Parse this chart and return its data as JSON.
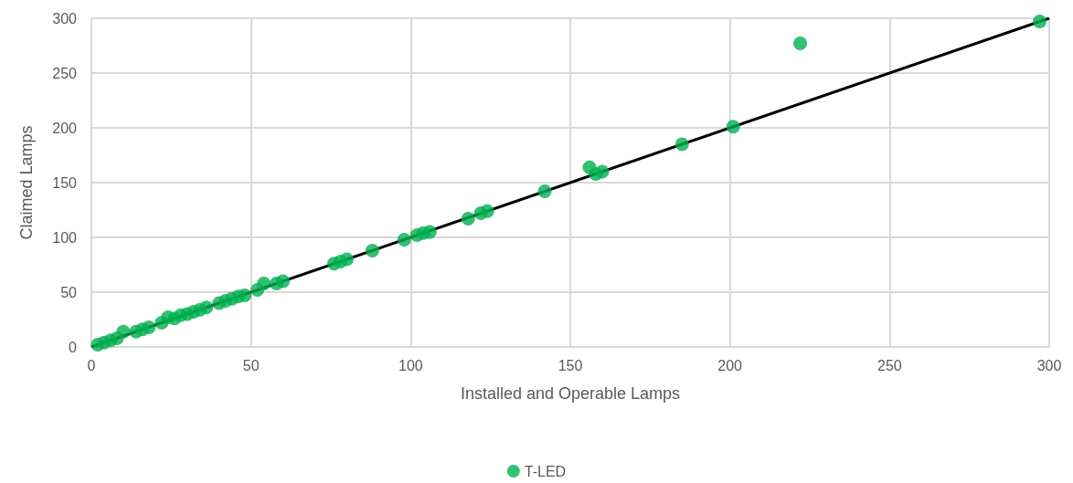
{
  "chart_data": {
    "type": "scatter",
    "xlabel": "Installed and Operable Lamps",
    "ylabel": "Claimed Lamps",
    "xlim": [
      0,
      300
    ],
    "ylim": [
      0,
      300
    ],
    "xticks": [
      0,
      50,
      100,
      150,
      200,
      250,
      300
    ],
    "yticks": [
      0,
      50,
      100,
      150,
      200,
      250,
      300
    ],
    "grid": true,
    "legend": "bottom",
    "marker": "circle",
    "series": [
      {
        "type": "line",
        "color": "#000000",
        "marker": "none",
        "x": [
          0,
          300
        ],
        "values": [
          0,
          300
        ]
      },
      {
        "name": "T-LED",
        "color": "#00b050",
        "x": [
          2,
          4,
          6,
          8,
          10,
          14,
          16,
          18,
          22,
          24,
          26,
          28,
          30,
          32,
          34,
          36,
          40,
          42,
          44,
          46,
          48,
          52,
          54,
          58,
          60,
          76,
          78,
          80,
          88,
          98,
          102,
          104,
          106,
          118,
          122,
          124,
          142,
          156,
          158,
          160,
          185,
          201,
          222,
          297
        ],
        "values": [
          2,
          4,
          6,
          8,
          14,
          14,
          16,
          18,
          22,
          27,
          26,
          29,
          30,
          32,
          34,
          36,
          40,
          42,
          44,
          46,
          47,
          52,
          58,
          58,
          60,
          76,
          78,
          80,
          88,
          98,
          102,
          104,
          105,
          117,
          122,
          124,
          142,
          164,
          158,
          160,
          185,
          201,
          277,
          297
        ]
      }
    ]
  }
}
